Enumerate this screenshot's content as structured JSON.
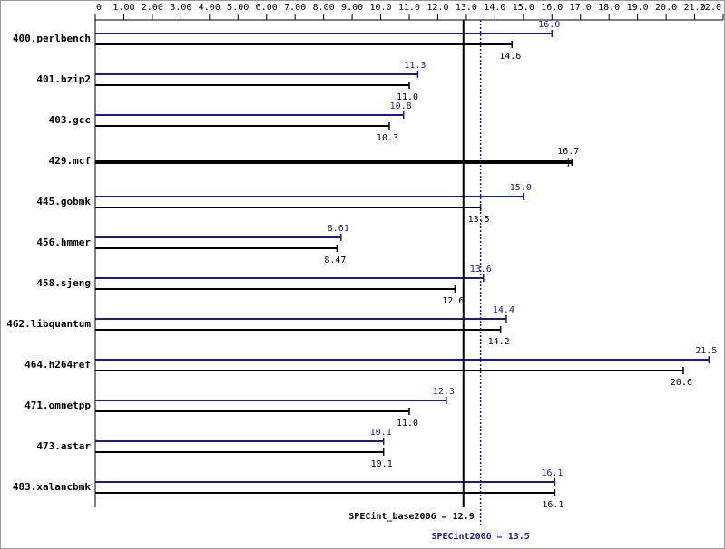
{
  "chart_data": {
    "type": "bar",
    "orientation": "horizontal",
    "categories": [
      "400.perlbench",
      "401.bzip2",
      "403.gcc",
      "429.mcf",
      "445.gobmk",
      "456.hmmer",
      "458.sjeng",
      "462.libquantum",
      "464.h264ref",
      "471.omnetpp",
      "473.astar",
      "483.xalancbmk"
    ],
    "series": [
      {
        "color": "#1a1a8c",
        "values": [
          16.0,
          11.3,
          10.8,
          null,
          15.0,
          8.61,
          13.6,
          14.4,
          21.5,
          12.3,
          10.1,
          16.1
        ],
        "value_labels": [
          "16.0",
          "11.3",
          "10.8",
          null,
          "15.0",
          "8.61",
          "13.6",
          "14.4",
          "21.5",
          "12.3",
          "10.1",
          "16.1"
        ]
      },
      {
        "color": "#000000",
        "values": [
          14.6,
          11.0,
          10.3,
          16.7,
          13.5,
          8.47,
          12.6,
          14.2,
          20.6,
          11.0,
          10.1,
          16.1
        ],
        "value_labels": [
          "14.6",
          "11.0",
          "10.3",
          "16.7",
          "13.5",
          "8.47",
          "12.6",
          "14.2",
          "20.6",
          "11.0",
          "10.1",
          "16.1"
        ]
      }
    ],
    "xlim": [
      0,
      22
    ],
    "xticks": [
      0,
      {
        "value": 1,
        "label": "1.00"
      },
      {
        "value": 2,
        "label": "2.00"
      },
      {
        "value": 3,
        "label": "3.00"
      },
      {
        "value": 4,
        "label": "4.00"
      },
      {
        "value": 5,
        "label": "5.00"
      },
      {
        "value": 6,
        "label": "6.00"
      },
      {
        "value": 7,
        "label": "7.00"
      },
      {
        "value": 8,
        "label": "8.00"
      },
      {
        "value": 9,
        "label": "9.00"
      },
      {
        "value": 10,
        "label": "10.0"
      },
      {
        "value": 11,
        "label": "11.0"
      },
      {
        "value": 12,
        "label": "12.0"
      },
      {
        "value": 13,
        "label": "13.0"
      },
      {
        "value": 14,
        "label": "14.0"
      },
      {
        "value": 15,
        "label": "15.0"
      },
      {
        "value": 16,
        "label": "16.0"
      },
      {
        "value": 17,
        "label": "17.0"
      },
      {
        "value": 18,
        "label": "18.0"
      },
      {
        "value": 19,
        "label": "19.0"
      },
      {
        "value": 20,
        "label": "20.0"
      },
      {
        "value": 21,
        "label": "21.0"
      },
      {
        "value": 22,
        "label": "22.0"
      }
    ],
    "reference_lines": [
      {
        "name": "SPECint_base2006 =",
        "value": 12.9,
        "color": "#000000"
      },
      {
        "name": "SPECint2006 =",
        "value": 13.5,
        "color": "#1a1a8c"
      }
    ]
  }
}
